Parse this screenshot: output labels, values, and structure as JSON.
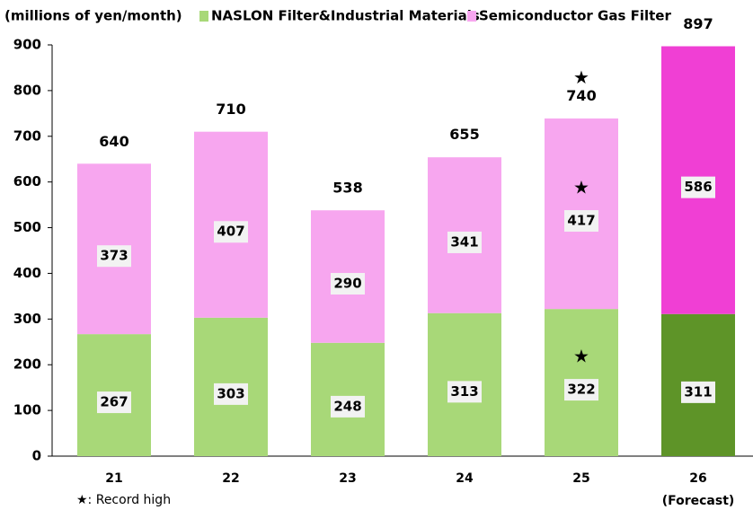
{
  "chart_data": {
    "type": "stacked_bar",
    "y_label": "(millions of yen/month)",
    "categories": [
      "21",
      "22",
      "23",
      "24",
      "25",
      "26"
    ],
    "category_notes": [
      null,
      null,
      null,
      null,
      null,
      "(Forecast)"
    ],
    "series": [
      {
        "name": "NASLON Filter&Industrial Materials",
        "color": "#a8d878",
        "colors": [
          "#a8d878",
          "#a8d878",
          "#a8d878",
          "#a8d878",
          "#a8d878",
          "#5e9428"
        ],
        "values": [
          267,
          303,
          248,
          313,
          322,
          311
        ]
      },
      {
        "name": "Semiconductor Gas Filter",
        "color": "#f7a6ef",
        "colors": [
          "#f7a6ef",
          "#f7a6ef",
          "#f7a6ef",
          "#f7a6ef",
          "#f7a6ef",
          "#f03fd4"
        ],
        "values": [
          373,
          407,
          290,
          341,
          417,
          586
        ]
      }
    ],
    "totals": [
      640,
      710,
      538,
      655,
      740,
      897
    ],
    "record_symbol": "★",
    "footnote": "★: Record high",
    "ylim": [
      0,
      900
    ],
    "yticks": [
      0,
      100,
      200,
      300,
      400,
      500,
      600,
      700,
      800,
      900
    ]
  }
}
